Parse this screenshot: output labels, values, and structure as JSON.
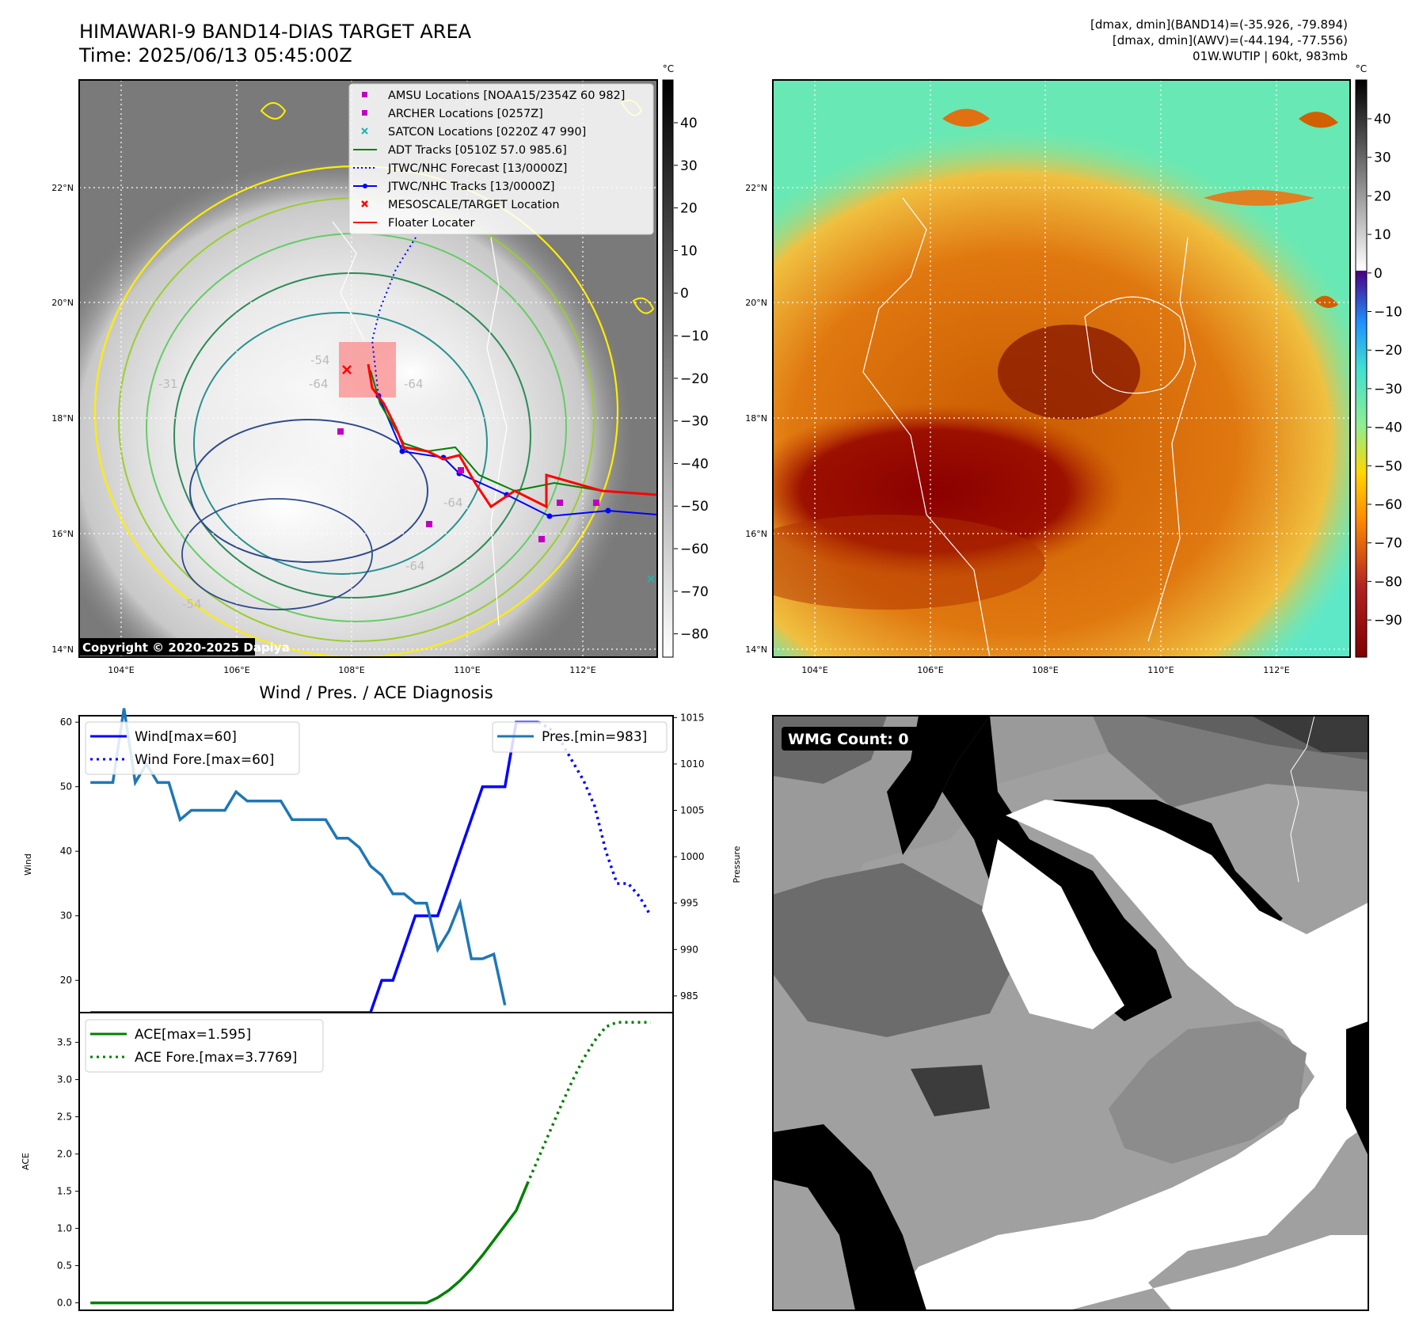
{
  "header": {
    "title_line1": "HIMAWARI-9 BAND14-DIAS TARGET AREA",
    "title_line2": "Time: 2025/06/13 05:45:00Z",
    "info_line1": "[dmax, dmin](BAND14)=(-35.926, -79.894)",
    "info_line2": "[dmax, dmin](AWV)=(-44.194, -77.556)",
    "info_line3": "01W.WUTIP | 60kt, 983mb"
  },
  "map_axes": {
    "lon_labels": [
      "104°E",
      "106°E",
      "108°E",
      "110°E",
      "112°E"
    ],
    "lat_labels": [
      "22°N",
      "20°N",
      "18°N",
      "16°N",
      "14°N"
    ]
  },
  "colorbar_left": {
    "unit": "°C",
    "ticks": [
      "40",
      "30",
      "20",
      "10",
      "0",
      "−10",
      "−20",
      "−30",
      "−40",
      "−50",
      "−60",
      "−70",
      "−80"
    ]
  },
  "colorbar_right": {
    "unit": "°C",
    "ticks": [
      "40",
      "30",
      "20",
      "10",
      "0",
      "−10",
      "−20",
      "−30",
      "−40",
      "−50",
      "−60",
      "−70",
      "−80",
      "−90"
    ]
  },
  "legend_map": [
    {
      "label": "AMSU Locations [NOAA15/2354Z 60 982]",
      "color": "#c000c0",
      "symbol": "square"
    },
    {
      "label": "ARCHER Locations [0257Z]",
      "color": "#c000c0",
      "symbol": "square"
    },
    {
      "label": "SATCON Locations [0220Z 47 990]",
      "color": "#20b2aa",
      "symbol": "x"
    },
    {
      "label": "ADT Tracks [0510Z 57.0 985.6]",
      "color": "#008000",
      "symbol": "line"
    },
    {
      "label": "JTWC/NHC Forecast [13/0000Z]",
      "color": "#0000ff",
      "symbol": "dotted"
    },
    {
      "label": "JTWC/NHC Tracks [13/0000Z]",
      "color": "#0000ff",
      "symbol": "line-dot"
    },
    {
      "label": "MESOSCALE/TARGET Location",
      "color": "#ff0000",
      "symbol": "x"
    },
    {
      "label": "Floater Locater",
      "color": "#ff0000",
      "symbol": "line"
    }
  ],
  "contour_labels": [
    "-54",
    "-64",
    "-64",
    "-31",
    "-64",
    "-54",
    "-64"
  ],
  "copyright": "Copyright © 2020-2025 Dapiya",
  "wmg_label": "WMG Count: 0",
  "chart_data": [
    {
      "type": "line",
      "title": "Wind / Pres. / ACE Diagnosis",
      "xlabel": "",
      "ylabel": "Wind",
      "ylabel_right": "Pressure",
      "ylim": [
        15,
        61
      ],
      "ylim_right": [
        983.2,
        1015.2
      ],
      "yticks": [
        20,
        30,
        40,
        50,
        60
      ],
      "yticks_right": [
        985,
        990,
        995,
        1000,
        1005,
        1010,
        1015
      ],
      "x": [
        0,
        1,
        2,
        3,
        4,
        5,
        6,
        7,
        8,
        9,
        10,
        11,
        12,
        13,
        14,
        15,
        16,
        17,
        18,
        19,
        20,
        21,
        22,
        23,
        24,
        25,
        26,
        27,
        28,
        29,
        30,
        31,
        32,
        33,
        34,
        35,
        36,
        37,
        38,
        39,
        40,
        41,
        42,
        43,
        44,
        45,
        46,
        47,
        48,
        49,
        50,
        51
      ],
      "series": [
        {
          "name": "Wind[max=60]",
          "axis": "left",
          "style": "solid",
          "color": "#0000ff",
          "values": [
            15,
            15,
            15,
            15,
            15,
            15,
            15,
            15,
            15,
            15,
            15,
            15,
            15,
            15,
            15,
            15,
            15,
            15,
            15,
            15,
            15,
            15,
            15,
            15,
            15,
            15,
            20,
            20,
            25,
            30,
            30,
            30,
            35,
            40,
            45,
            50,
            50,
            50,
            60,
            60,
            60,
            null,
            null,
            null,
            null,
            null,
            null,
            null,
            null,
            null,
            null,
            null
          ]
        },
        {
          "name": "Wind Fore.[max=60]",
          "axis": "left",
          "style": "dotted",
          "color": "#0000ff",
          "values": [
            null,
            null,
            null,
            null,
            null,
            null,
            null,
            null,
            null,
            null,
            null,
            null,
            null,
            null,
            null,
            null,
            null,
            null,
            null,
            null,
            null,
            null,
            null,
            null,
            null,
            null,
            null,
            null,
            null,
            null,
            null,
            null,
            null,
            null,
            null,
            null,
            null,
            null,
            null,
            null,
            60,
            59,
            57,
            54,
            51,
            47,
            40,
            35,
            35,
            33,
            30,
            null
          ]
        },
        {
          "name": "Pres.[min=983]",
          "axis": "right",
          "style": "solid",
          "color": "#1f77b4",
          "values": [
            1008,
            1008,
            1008,
            1016,
            1008,
            1010,
            1008,
            1008,
            1004,
            1005,
            1005,
            1005,
            1005,
            1007,
            1006,
            1006,
            1006,
            1006,
            1004,
            1004,
            1004,
            1004,
            1002,
            1002,
            1001,
            999,
            998,
            996,
            996,
            995,
            995,
            990,
            992,
            995,
            989,
            989,
            989.5,
            984,
            null,
            null,
            null,
            null,
            null,
            null,
            null,
            null,
            null,
            null,
            null,
            null,
            null,
            null
          ]
        }
      ]
    },
    {
      "type": "line",
      "xlabel": "",
      "ylabel": "ACE",
      "ylim": [
        -0.1,
        3.9
      ],
      "yticks": [
        0.0,
        0.5,
        1.0,
        1.5,
        2.0,
        2.5,
        3.0,
        3.5
      ],
      "ytick_labels": [
        "0.0",
        "0.5",
        "1.0",
        "1.5",
        "2.0",
        "2.5",
        "3.0",
        "3.5"
      ],
      "x": [
        0,
        1,
        2,
        3,
        4,
        5,
        6,
        7,
        8,
        9,
        10,
        11,
        12,
        13,
        14,
        15,
        16,
        17,
        18,
        19,
        20,
        21,
        22,
        23,
        24,
        25,
        26,
        27,
        28,
        29,
        30,
        31,
        32,
        33,
        34,
        35,
        36,
        37,
        38,
        39,
        40,
        41,
        42,
        43,
        44,
        45,
        46,
        47,
        48,
        49,
        50,
        51
      ],
      "series": [
        {
          "name": "ACE[max=1.595]",
          "style": "solid",
          "color": "#008000",
          "values": [
            0,
            0,
            0,
            0,
            0,
            0,
            0,
            0,
            0,
            0,
            0,
            0,
            0,
            0,
            0,
            0,
            0,
            0,
            0,
            0,
            0,
            0,
            0,
            0,
            0,
            0,
            0,
            0,
            0,
            0,
            0,
            0.07,
            0.17,
            0.3,
            0.46,
            0.64,
            0.84,
            1.04,
            1.24,
            1.6,
            null,
            null,
            null,
            null,
            null,
            null,
            null,
            null,
            null,
            null,
            null,
            null
          ]
        },
        {
          "name": "ACE Fore.[max=3.7769]",
          "style": "dotted",
          "color": "#008000",
          "values": [
            null,
            null,
            null,
            null,
            null,
            null,
            null,
            null,
            null,
            null,
            null,
            null,
            null,
            null,
            null,
            null,
            null,
            null,
            null,
            null,
            null,
            null,
            null,
            null,
            null,
            null,
            null,
            null,
            null,
            null,
            null,
            null,
            null,
            null,
            null,
            null,
            null,
            null,
            null,
            1.6,
            1.95,
            2.3,
            2.65,
            2.98,
            3.28,
            3.52,
            3.71,
            3.77,
            3.77,
            3.77,
            3.77,
            null
          ]
        }
      ]
    }
  ]
}
